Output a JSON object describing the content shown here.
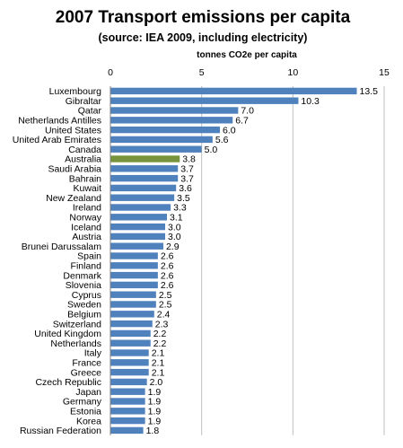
{
  "chart_data": {
    "type": "bar",
    "orientation": "horizontal",
    "title": "2007 Transport emissions per capita",
    "subtitle": "(source: IEA 2009, including electricity)",
    "xlabel": "tonnes CO2e per capita",
    "xlim": [
      0,
      15
    ],
    "xticks": [
      "0",
      "5",
      "10",
      "15"
    ],
    "grid": true,
    "legend": "none",
    "bar_color": "#4f81bd",
    "highlight_color": "#77933c",
    "highlight_category": "Australia",
    "categories": [
      "Luxembourg",
      "Gibraltar",
      "Qatar",
      "Netherlands Antilles",
      "United States",
      "United Arab Emirates",
      "Canada",
      "Australia",
      "Saudi Arabia",
      "Bahrain",
      "Kuwait",
      "New Zealand",
      "Ireland",
      "Norway",
      "Iceland",
      "Austria",
      "Brunei Darussalam",
      "Spain",
      "Finland",
      "Denmark",
      "Slovenia",
      "Cyprus",
      "Sweden",
      "Belgium",
      "Switzerland",
      "United Kingdom",
      "Netherlands",
      "Italy",
      "France",
      "Greece",
      "Czech Republic",
      "Japan",
      "Germany",
      "Estonia",
      "Korea",
      "Russian Federation"
    ],
    "values": [
      13.5,
      10.3,
      7.0,
      6.7,
      6.0,
      5.6,
      5.0,
      3.8,
      3.7,
      3.7,
      3.6,
      3.5,
      3.3,
      3.1,
      3.0,
      3.0,
      2.9,
      2.6,
      2.6,
      2.6,
      2.6,
      2.5,
      2.5,
      2.4,
      2.3,
      2.2,
      2.2,
      2.1,
      2.1,
      2.1,
      2.0,
      1.9,
      1.9,
      1.9,
      1.9,
      1.8
    ],
    "value_labels": [
      "13.5",
      "10.3",
      "7.0",
      "6.7",
      "6.0",
      "5.6",
      "5.0",
      "3.8",
      "3.7",
      "3.7",
      "3.6",
      "3.5",
      "3.3",
      "3.1",
      "3.0",
      "3.0",
      "2.9",
      "2.6",
      "2.6",
      "2.6",
      "2.6",
      "2.5",
      "2.5",
      "2.4",
      "2.3",
      "2.2",
      "2.2",
      "2.1",
      "2.1",
      "2.1",
      "2.0",
      "1.9",
      "1.9",
      "1.9",
      "1.9",
      "1.8"
    ]
  }
}
